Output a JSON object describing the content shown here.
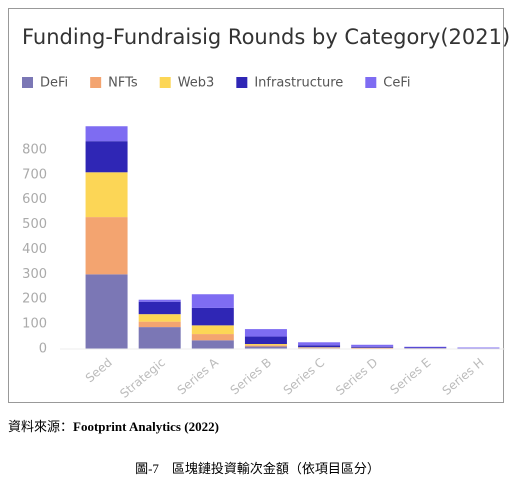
{
  "chart_data": {
    "type": "stacked_bar",
    "title": "Funding-Fundraisig Rounds by Category(2021)",
    "categories": [
      "Seed",
      "Strategic",
      "Series A",
      "Series B",
      "Series C",
      "Series D",
      "Series E",
      "Series H"
    ],
    "series": [
      {
        "name": "DeFi",
        "color": "#7b77b5",
        "values": [
          300,
          88,
          35,
          10,
          3,
          2,
          1,
          1
        ]
      },
      {
        "name": "NFTs",
        "color": "#f3a470",
        "values": [
          230,
          22,
          25,
          5,
          2,
          2,
          1,
          0
        ]
      },
      {
        "name": "Web3",
        "color": "#fcd656",
        "values": [
          180,
          30,
          35,
          5,
          2,
          1,
          1,
          0
        ]
      },
      {
        "name": "Infrastructure",
        "color": "#2f26b5",
        "values": [
          125,
          50,
          70,
          30,
          8,
          4,
          3,
          2
        ]
      },
      {
        "name": "CeFi",
        "color": "#7e6cf2",
        "values": [
          60,
          8,
          55,
          30,
          12,
          8,
          3,
          3
        ]
      }
    ],
    "ylim": [
      0,
      900
    ],
    "yticks": [
      0,
      100,
      200,
      300,
      400,
      500,
      600,
      700,
      800
    ],
    "grid": false
  },
  "source_label": "資料來源：",
  "source": "Footprint Analytics (2022)",
  "figure_caption": "圖-7　區塊鏈投資輸次金額（依項目區分）"
}
